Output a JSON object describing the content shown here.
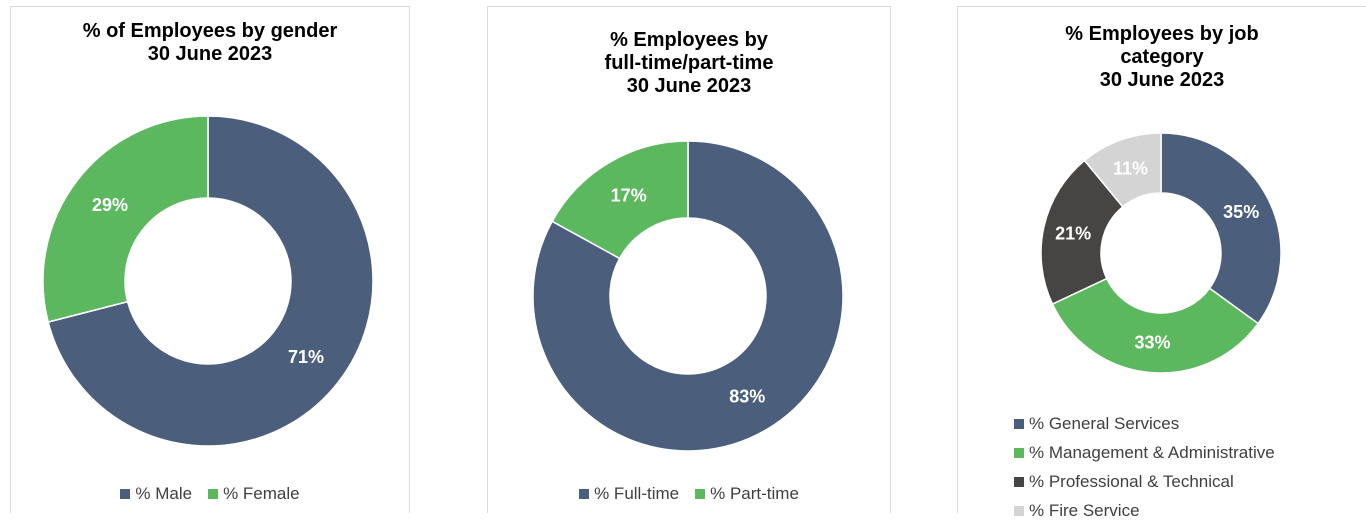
{
  "colors": {
    "navy": "#4b5f7d",
    "green": "#5cb85e",
    "dark": "#474543",
    "light": "#d4d4d4"
  },
  "chart_data": [
    {
      "type": "pie",
      "style": "donut",
      "title_lines": [
        "% of Employees by gender",
        "30 June 2023"
      ],
      "categories": [
        "% Male",
        "% Female"
      ],
      "values": [
        71,
        29
      ],
      "labels": [
        "71%",
        "29%"
      ],
      "colors": [
        "#4b5f7d",
        "#5cb85e"
      ],
      "legend": "bottom"
    },
    {
      "type": "pie",
      "style": "donut",
      "title_lines": [
        "% Employees by",
        "full-time/part-time",
        "30 June 2023"
      ],
      "categories": [
        "% Full-time",
        "% Part-time"
      ],
      "values": [
        83,
        17
      ],
      "labels": [
        "83%",
        "17%"
      ],
      "colors": [
        "#4b5f7d",
        "#5cb85e"
      ],
      "legend": "bottom"
    },
    {
      "type": "pie",
      "style": "donut",
      "title_lines": [
        "% Employees by job",
        "category",
        "30 June 2023"
      ],
      "categories": [
        "% General Services",
        "% Management & Administrative",
        "% Professional & Technical",
        "% Fire Service"
      ],
      "values": [
        35,
        33,
        21,
        11
      ],
      "labels": [
        "35%",
        "33%",
        "21%",
        "11%"
      ],
      "colors": [
        "#4b5f7d",
        "#5cb85e",
        "#474543",
        "#d4d4d4"
      ],
      "legend": "bottom"
    }
  ]
}
